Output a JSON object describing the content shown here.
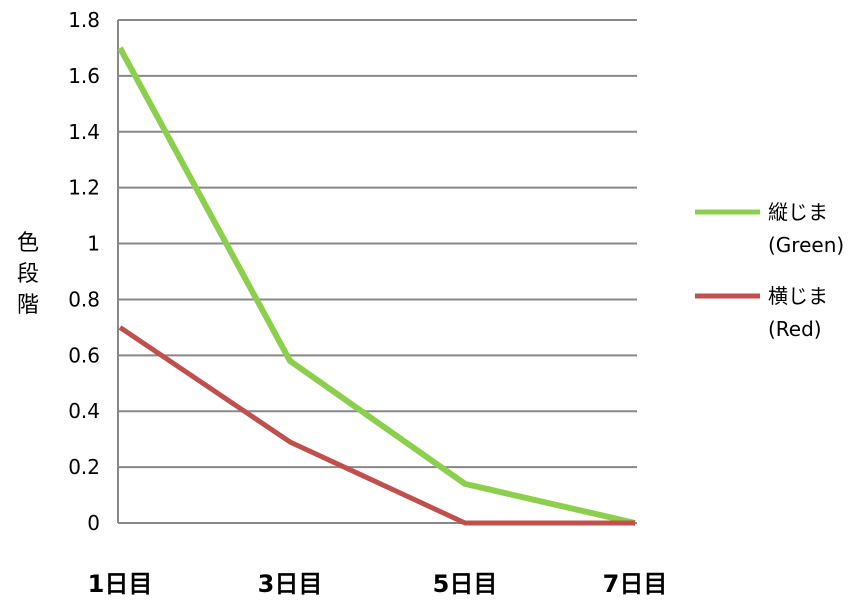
{
  "chart_data": {
    "type": "line",
    "title": "",
    "xlabel": "",
    "ylabel": "色段階",
    "categories": [
      "1日目",
      "3日目",
      "5日目",
      "7日目"
    ],
    "x_tick_labels": [
      "1日目",
      "3日目",
      "5日目",
      "7日目"
    ],
    "y_tick_labels": [
      "0",
      "0.2",
      "0.4",
      "0.6",
      "0.8",
      "1",
      "1.2",
      "1.4",
      "1.6",
      "1.8"
    ],
    "ylim": [
      0,
      1.8
    ],
    "grid": true,
    "legend_position": "right",
    "series": [
      {
        "name_line1": "縦じま",
        "name_line2": "(Green)",
        "color": "#8ccf4d",
        "values": [
          1.7,
          0.58,
          0.14,
          0.0
        ]
      },
      {
        "name_line1": "横じま",
        "name_line2": "(Red)",
        "color": "#c0504d",
        "values": [
          0.7,
          0.29,
          0.0,
          0.0
        ]
      }
    ]
  }
}
